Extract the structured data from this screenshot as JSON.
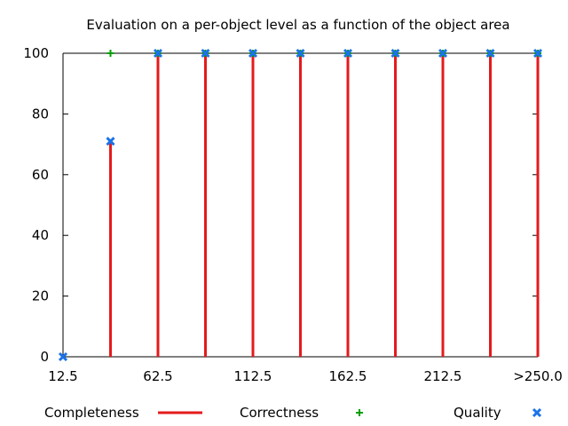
{
  "chart_data": {
    "type": "bar",
    "title": "Evaluation on a per-object level as a function of the object area",
    "xlabel": "",
    "ylabel": "",
    "ylim": [
      0,
      100
    ],
    "xlim": [
      12.5,
      262.5
    ],
    "x_tick_labels": [
      {
        "x": 12.5,
        "label": "12.5"
      },
      {
        "x": 62.5,
        "label": "62.5"
      },
      {
        "x": 112.5,
        "label": "112.5"
      },
      {
        "x": 162.5,
        "label": "162.5"
      },
      {
        "x": 212.5,
        "label": "212.5"
      },
      {
        "x": 262.5,
        "label": ">250.0"
      }
    ],
    "y_ticks": [
      0,
      20,
      40,
      60,
      80,
      100
    ],
    "x": [
      12.5,
      37.5,
      62.5,
      87.5,
      112.5,
      137.5,
      162.5,
      187.5,
      212.5,
      237.5,
      262.5
    ],
    "series": [
      {
        "name": "Completeness",
        "style": "impulse",
        "color": "#e41a1c",
        "values": [
          0,
          71,
          100,
          100,
          100,
          100,
          100,
          100,
          100,
          100,
          100
        ]
      },
      {
        "name": "Correctness",
        "style": "plus",
        "color": "#00a000",
        "values": [
          null,
          100,
          100,
          100,
          100,
          100,
          100,
          100,
          100,
          100,
          100
        ]
      },
      {
        "name": "Quality",
        "style": "cross",
        "color": "#1a73e8",
        "values": [
          0,
          71,
          100,
          100,
          100,
          100,
          100,
          100,
          100,
          100,
          100
        ]
      }
    ],
    "grid": false,
    "legend_position": "bottom"
  }
}
